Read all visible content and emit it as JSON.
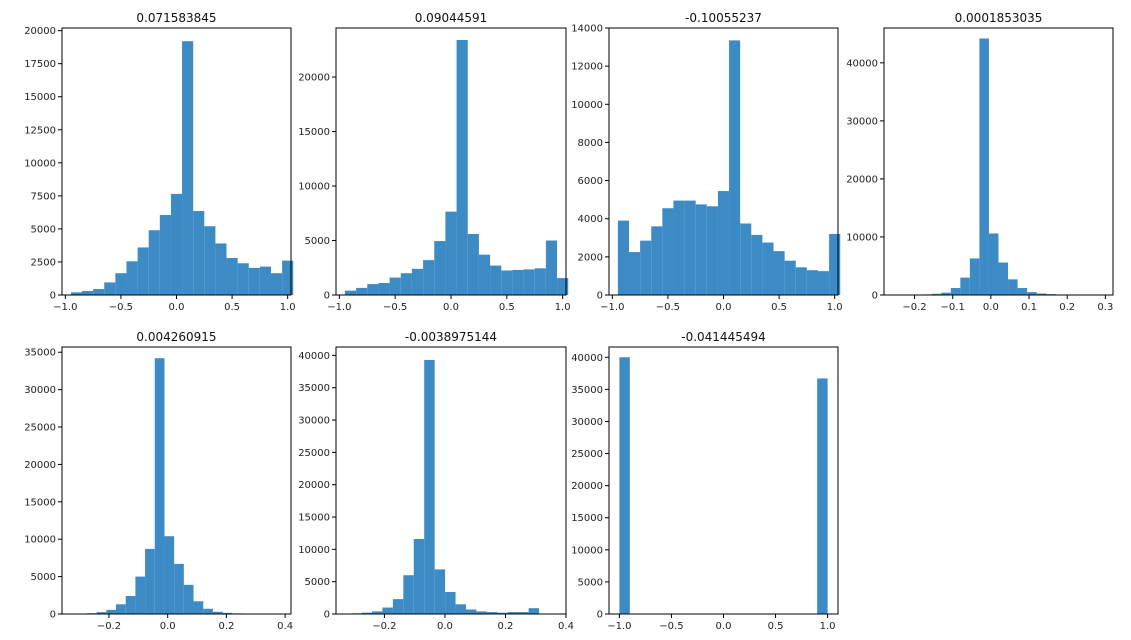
{
  "chart_data": [
    {
      "type": "bar",
      "title": "0.071583845",
      "bin_start": -0.95,
      "bin_width": 0.1,
      "xlim": [
        -1.03,
        1.03
      ],
      "ylim": [
        0,
        20200
      ],
      "xticks": [
        -1.0,
        -0.5,
        0.0,
        0.5,
        1.0
      ],
      "xtick_labels": [
        "−1.0",
        "−0.5",
        "0.0",
        "0.5",
        "1.0"
      ],
      "yticks": [
        0,
        2500,
        5000,
        7500,
        10000,
        12500,
        15000,
        17500,
        20000
      ],
      "ytick_labels": [
        "0",
        "2500",
        "5000",
        "7500",
        "10000",
        "12500",
        "15000",
        "17500",
        "20000"
      ],
      "values": [
        200,
        300,
        450,
        950,
        1650,
        2550,
        3600,
        4900,
        6050,
        7650,
        19200,
        6350,
        5200,
        3900,
        2800,
        2400,
        2050,
        2150,
        1650,
        2600
      ]
    },
    {
      "type": "bar",
      "title": "0.09044591",
      "bin_start": -0.95,
      "bin_width": 0.1,
      "xlim": [
        -1.03,
        1.03
      ],
      "ylim": [
        0,
        24500
      ],
      "xticks": [
        -1.0,
        -0.5,
        0.0,
        0.5,
        1.0
      ],
      "xtick_labels": [
        "−1.0",
        "−0.5",
        "0.0",
        "0.5",
        "1.0"
      ],
      "yticks": [
        0,
        5000,
        10000,
        15000,
        20000
      ],
      "ytick_labels": [
        "0",
        "5000",
        "10000",
        "15000",
        "20000"
      ],
      "values": [
        400,
        650,
        1000,
        1100,
        1600,
        2000,
        2400,
        3200,
        4950,
        7650,
        23400,
        5600,
        3700,
        2700,
        2250,
        2300,
        2350,
        2450,
        5000,
        1550
      ]
    },
    {
      "type": "bar",
      "title": "-0.10055237",
      "bin_start": -0.95,
      "bin_width": 0.1,
      "xlim": [
        -1.03,
        1.03
      ],
      "ylim": [
        0,
        14000
      ],
      "xticks": [
        -1.0,
        -0.5,
        0.0,
        0.5,
        1.0
      ],
      "xtick_labels": [
        "−1.0",
        "−0.5",
        "0.0",
        "0.5",
        "1.0"
      ],
      "yticks": [
        0,
        2000,
        4000,
        6000,
        8000,
        10000,
        12000,
        14000
      ],
      "ytick_labels": [
        "0",
        "2000",
        "4000",
        "6000",
        "8000",
        "10000",
        "12000",
        "14000"
      ],
      "values": [
        3900,
        2250,
        2850,
        3600,
        4550,
        4950,
        4950,
        4750,
        4650,
        5450,
        13350,
        3750,
        3150,
        2750,
        2300,
        1800,
        1450,
        1300,
        1250,
        3200
      ]
    },
    {
      "type": "bar",
      "title": "0.0001853035",
      "bin_start": -0.23,
      "bin_width": 0.025,
      "xlim": [
        -0.28,
        0.32
      ],
      "ylim": [
        0,
        46000
      ],
      "xticks": [
        -0.2,
        -0.1,
        0.0,
        0.1,
        0.2,
        0.3
      ],
      "xtick_labels": [
        "−0.2",
        "−0.1",
        "0.0",
        "0.1",
        "0.2",
        "0.3"
      ],
      "yticks": [
        0,
        10000,
        20000,
        30000,
        40000
      ],
      "ytick_labels": [
        "0",
        "10000",
        "20000",
        "30000",
        "40000"
      ],
      "values": [
        0,
        50,
        100,
        200,
        400,
        1200,
        3000,
        6300,
        44200,
        10600,
        5600,
        2700,
        1200,
        500,
        250,
        150,
        80,
        60,
        40,
        30
      ]
    },
    {
      "type": "bar",
      "title": "0.004260915",
      "bin_start": -0.275,
      "bin_width": 0.033,
      "xlim": [
        -0.36,
        0.42
      ],
      "ylim": [
        0,
        35700
      ],
      "xticks": [
        -0.2,
        0.0,
        0.2,
        0.4
      ],
      "xtick_labels": [
        "−0.2",
        "0.0",
        "0.2",
        "0.4"
      ],
      "yticks": [
        0,
        5000,
        10000,
        15000,
        20000,
        25000,
        30000,
        35000
      ],
      "ytick_labels": [
        "0",
        "5000",
        "10000",
        "15000",
        "20000",
        "25000",
        "30000",
        "35000"
      ],
      "values": [
        100,
        250,
        550,
        1300,
        2400,
        5000,
        8700,
        34200,
        10400,
        6700,
        3900,
        1700,
        700,
        300,
        150,
        80,
        50,
        30
      ]
    },
    {
      "type": "bar",
      "title": "-0.0038975144",
      "bin_start": -0.31,
      "bin_width": 0.0345,
      "xlim": [
        -0.36,
        0.4
      ],
      "ylim": [
        0,
        41300
      ],
      "xticks": [
        -0.2,
        0.0,
        0.2,
        0.4
      ],
      "xtick_labels": [
        "−0.2",
        "0.0",
        "0.2",
        "0.4"
      ],
      "yticks": [
        0,
        5000,
        10000,
        15000,
        20000,
        25000,
        30000,
        35000,
        40000
      ],
      "ytick_labels": [
        "0",
        "5000",
        "10000",
        "15000",
        "20000",
        "25000",
        "30000",
        "35000",
        "40000"
      ],
      "values": [
        100,
        200,
        400,
        1000,
        2300,
        6000,
        11600,
        39300,
        6900,
        3400,
        1500,
        700,
        400,
        300,
        200,
        300,
        300,
        900
      ]
    },
    {
      "type": "bar",
      "title": "-0.041445494",
      "bin_start": -1.0,
      "bin_width": 0.1,
      "xlim": [
        -1.1,
        1.1
      ],
      "ylim": [
        0,
        41600
      ],
      "xticks": [
        -1.0,
        -0.5,
        0.0,
        0.5,
        1.0
      ],
      "xtick_labels": [
        "−1.0",
        "−0.5",
        "0.0",
        "0.5",
        "1.0"
      ],
      "yticks": [
        0,
        5000,
        10000,
        15000,
        20000,
        25000,
        30000,
        35000,
        40000
      ],
      "ytick_labels": [
        "0",
        "5000",
        "10000",
        "15000",
        "20000",
        "25000",
        "30000",
        "35000",
        "40000"
      ],
      "values": [
        40000,
        0,
        0,
        0,
        0,
        0,
        0,
        0,
        0,
        0,
        0,
        0,
        0,
        0,
        0,
        0,
        0,
        0,
        0,
        36700
      ]
    }
  ]
}
